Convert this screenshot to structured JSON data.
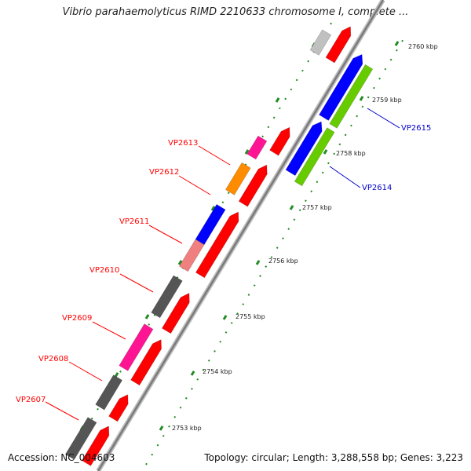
{
  "title": "Vibrio parahaemolyticus RIMD 2210633 chromosome I, complete ...",
  "accession_text": "Accession: NC_004603",
  "summary_text": "Topology: circular; Length: 3,288,558 bp; Genes: 3,223",
  "colors": {
    "red": "#ff0000",
    "magenta": "#ff1493",
    "orange": "#ff8c00",
    "salmon": "#f08080",
    "dark_gray": "#555555",
    "light_gray": "#c0c0c0",
    "blue": "#0000ff",
    "green": "#66cc00",
    "backbone": "#888888",
    "tick_green": "#228b22",
    "label_red": "#ff0000",
    "label_blue": "#0000cc"
  },
  "scale_labels": [
    "2753 kbp",
    "2754 kbp",
    "2755 kbp",
    "2756 kbp",
    "2757 kbp",
    "2758 kbp",
    "2759 kbp",
    "2760 kbp"
  ],
  "gene_labels_left": [
    "VP2607",
    "VP2608",
    "VP2609",
    "VP2610",
    "VP2611",
    "VP2612",
    "VP2613"
  ],
  "gene_labels_right": [
    "VP2614",
    "VP2615"
  ]
}
